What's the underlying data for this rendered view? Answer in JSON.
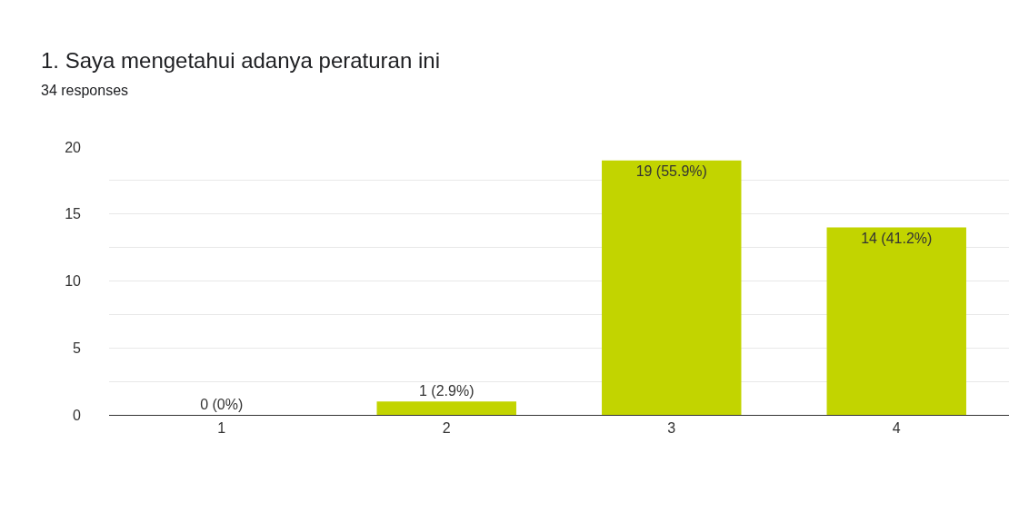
{
  "chart_data": {
    "type": "bar",
    "title": "1. Saya mengetahui adanya peraturan ini",
    "subtitle": "34 responses",
    "categories": [
      "1",
      "2",
      "3",
      "4"
    ],
    "values": [
      0,
      1,
      19,
      14
    ],
    "color": "#c2d400",
    "value_labels": [
      "0 (0%)",
      "1 (2.9%)",
      "19 (55.9%)",
      "14 (41.2%)"
    ],
    "ylim": [
      0,
      20
    ],
    "yticks": [
      0,
      {
        "value": 2.5,
        "label": null
      },
      5,
      {
        "value": 7.5,
        "label": null
      },
      10,
      {
        "value": 12.5,
        "label": null
      },
      15,
      {
        "value": 17.5,
        "label": null
      },
      20
    ],
    "grid": "y"
  }
}
